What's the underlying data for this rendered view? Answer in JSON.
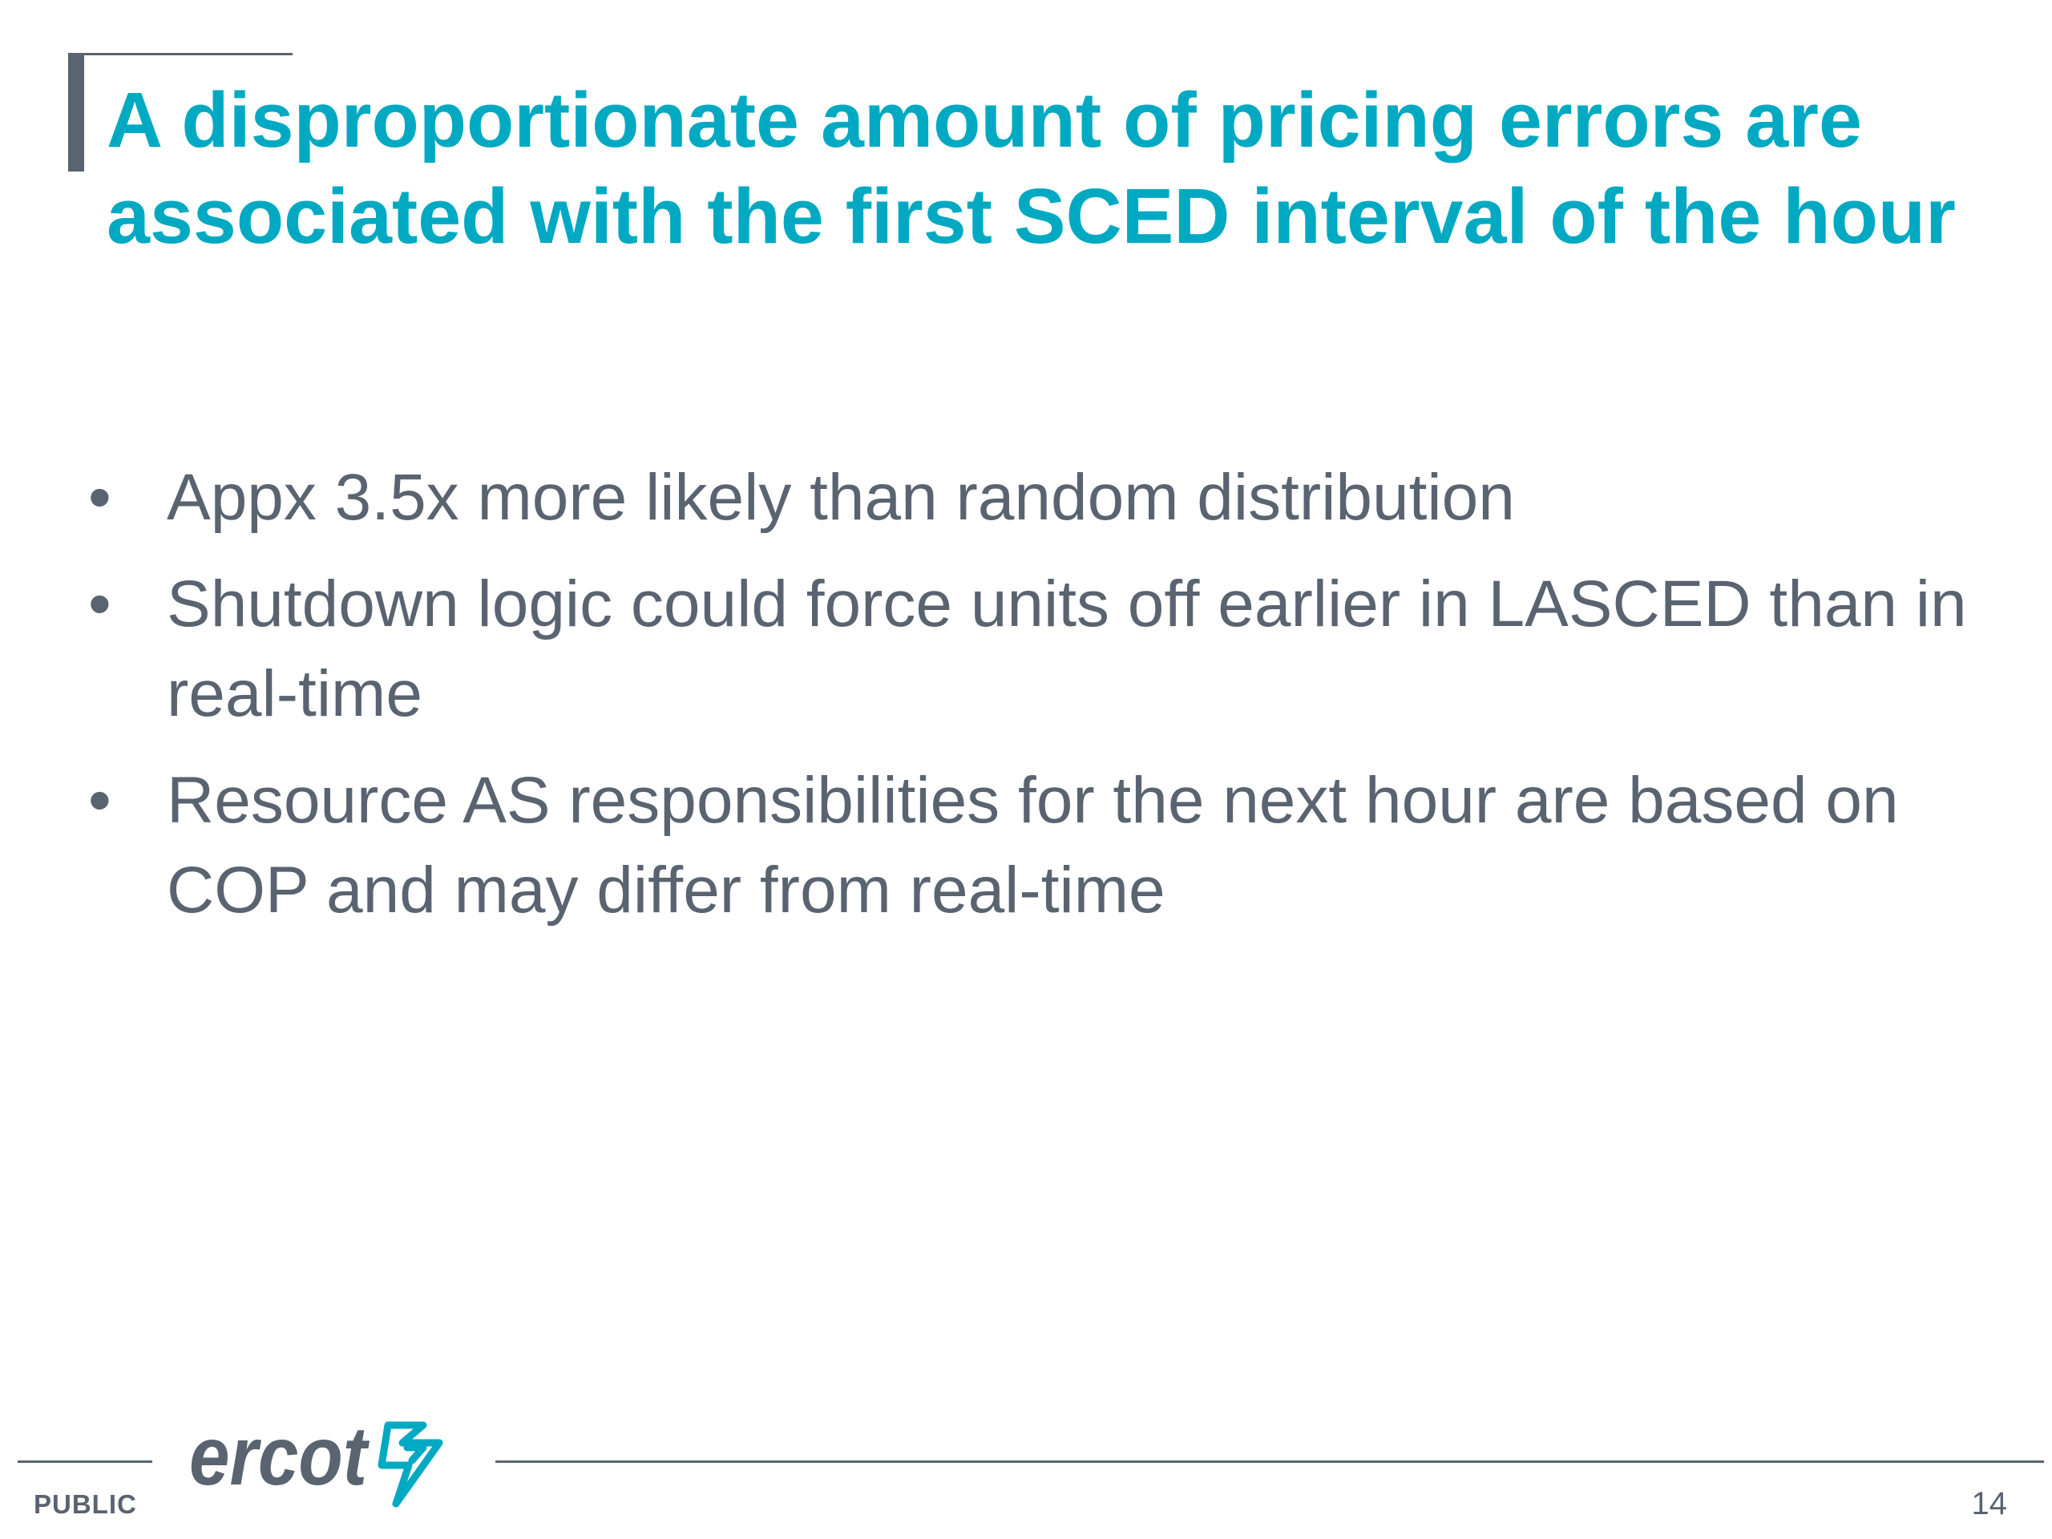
{
  "slide": {
    "title": "A disproportionate amount of pricing errors are associated with the first SCED interval of the hour",
    "bullets": [
      "Appx 3.5x more likely than random distribution",
      "Shutdown logic could force units off earlier in LASCED than in real-time",
      "Resource AS responsibilities for the next hour are based on COP and may differ from real-time"
    ],
    "bullet_glyph": "•"
  },
  "footer": {
    "logo_text": "ercot",
    "classification": "PUBLIC",
    "page_number": "14"
  },
  "colors": {
    "title": "#00a9c2",
    "body_text": "#5a6470",
    "logo_mark": "#00a9c2"
  }
}
